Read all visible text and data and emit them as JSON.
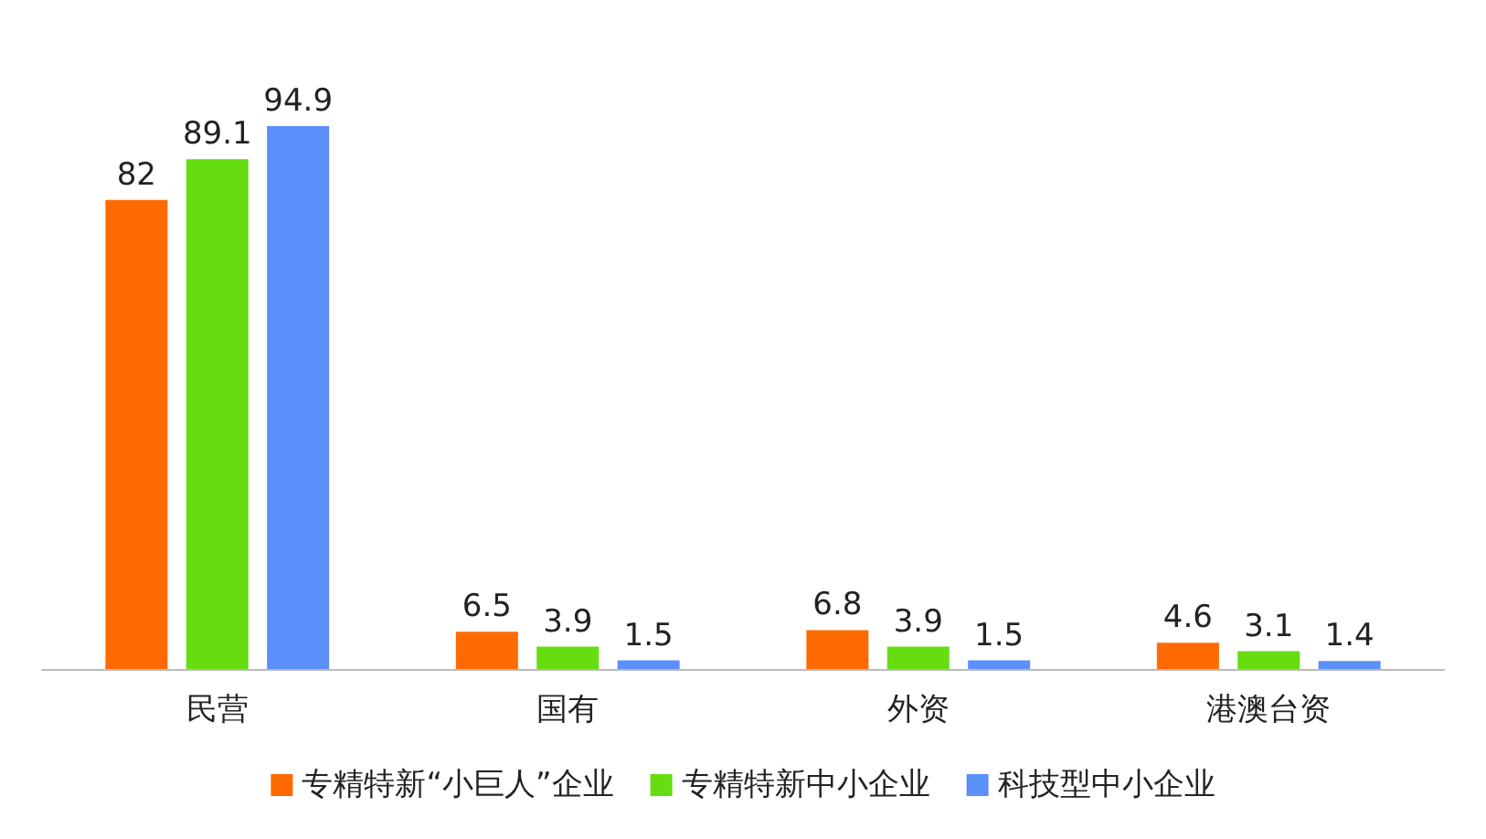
{
  "chart_data": {
    "type": "bar",
    "categories": [
      "民营",
      "国有",
      "外资",
      "港澳台资"
    ],
    "series": [
      {
        "name": "专精特新“小巨人”企业",
        "color": "#ff6a00",
        "values": [
          82,
          6.5,
          6.8,
          4.6
        ]
      },
      {
        "name": "专精特新中小企业",
        "color": "#66dd11",
        "values": [
          89.1,
          3.9,
          3.9,
          3.1
        ]
      },
      {
        "name": "科技型中小企业",
        "color": "#5b8ff9",
        "values": [
          94.9,
          1.5,
          1.5,
          1.4
        ]
      }
    ],
    "data_labels": true,
    "tick_labels": "x",
    "grid": false,
    "legend": "bottom"
  }
}
